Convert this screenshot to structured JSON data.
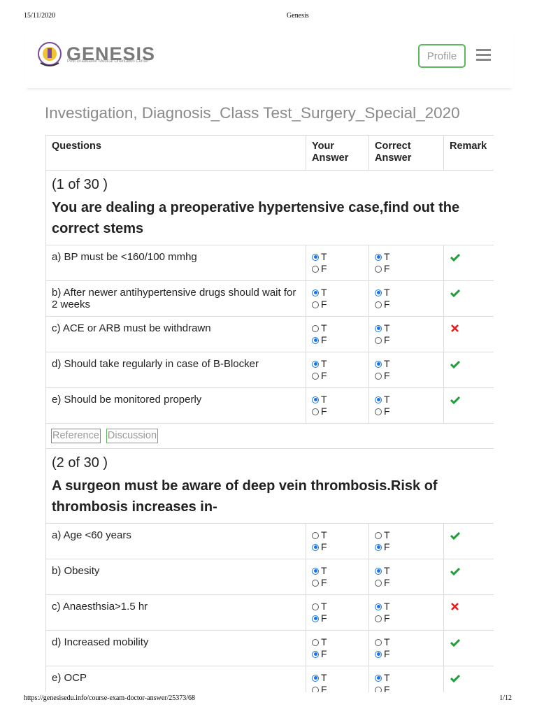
{
  "print_header": {
    "date": "15/11/2020",
    "title": "Genesis"
  },
  "logo": {
    "name": "GENESIS",
    "tagline": "Post Graduation Medical Orientation Center"
  },
  "nav": {
    "profile": "Profile"
  },
  "page_title": "Investigation, Diagnosis_Class Test_Surgery_Special_2020",
  "options": [
    "T",
    "F"
  ],
  "table": {
    "headers": [
      "Questions",
      "Your Answer",
      "Correct Answer",
      "Remark"
    ],
    "questions": [
      {
        "number": "(1 of 30 )",
        "text": "You are dealing a preoperative hypertensive case,find out the correct stems",
        "stems": [
          {
            "text": "a) BP must be <160/100 mmhg",
            "your_answer": "T",
            "correct_answer": "T"
          },
          {
            "text": "b) After newer antihypertensive drugs should wait for 2 weeks",
            "your_answer": "T",
            "correct_answer": "T"
          },
          {
            "text": "c) ACE or ARB must be withdrawn",
            "your_answer": "F",
            "correct_answer": "T"
          },
          {
            "text": "d) Should take regularly in case of B-Blocker",
            "your_answer": "T",
            "correct_answer": "T"
          },
          {
            "text": "e) Should be monitored properly",
            "your_answer": "T",
            "correct_answer": "T"
          }
        ],
        "buttons": [
          "Reference",
          "Discussion"
        ]
      },
      {
        "number": "(2 of 30 )",
        "text": "A surgeon must be aware of deep vein thrombosis.Risk of thrombosis increases in-",
        "stems": [
          {
            "text": "a) Age <60 years",
            "your_answer": "F",
            "correct_answer": "F"
          },
          {
            "text": "b) Obesity",
            "your_answer": "T",
            "correct_answer": "T"
          },
          {
            "text": "c) Anaesthsia>1.5 hr",
            "your_answer": "F",
            "correct_answer": "T"
          },
          {
            "text": "d) Increased mobility",
            "your_answer": "F",
            "correct_answer": "F"
          },
          {
            "text": "e) OCP",
            "your_answer": "T",
            "correct_answer": "T"
          }
        ]
      }
    ]
  },
  "print_footer": {
    "url": "https://genesisedu.info/course-exam-doctor-answer/25373/68",
    "page": "1/12"
  }
}
